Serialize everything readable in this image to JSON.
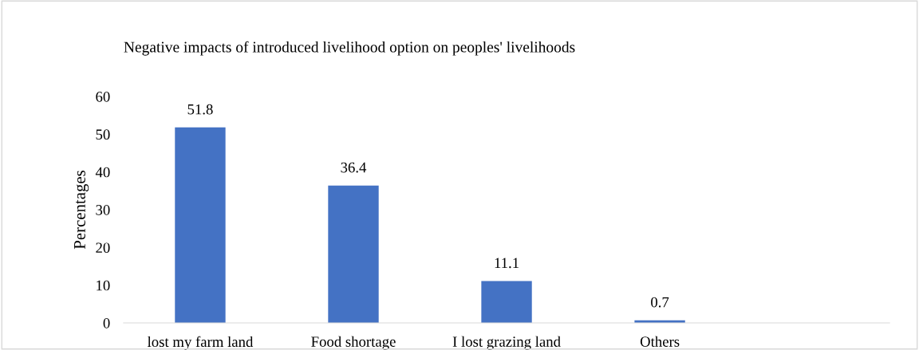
{
  "chart_data": {
    "type": "bar",
    "title": "Negative impacts of introduced livelihood option on peoples' livelihoods",
    "ylabel": "Percentages",
    "categories": [
      "lost my farm land",
      "Food shortage",
      "I lost grazing land",
      "Others",
      null
    ],
    "values": [
      51.8,
      36.4,
      11.1,
      0.7,
      null
    ],
    "color": "#4472c4",
    "ylim": [
      0,
      60
    ],
    "yticks": [
      0,
      10,
      20,
      30,
      40,
      50,
      60
    ],
    "grid": false,
    "data_labels": true
  }
}
